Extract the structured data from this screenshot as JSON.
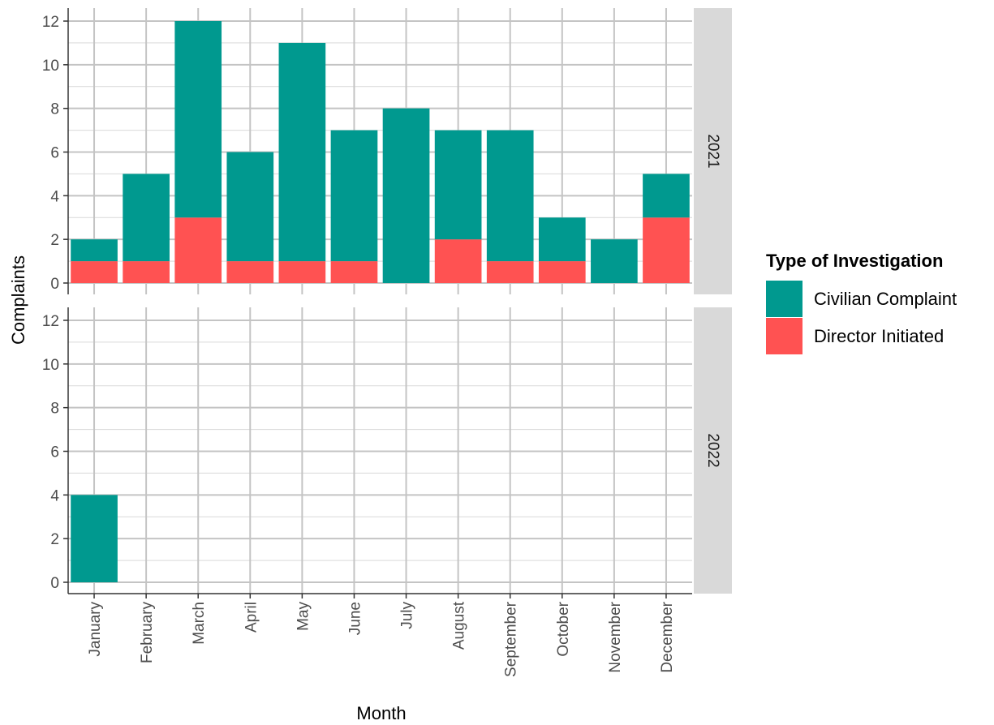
{
  "chart_data": {
    "type": "bar",
    "stacked": true,
    "facet_by": "year",
    "facets": [
      "2021",
      "2022"
    ],
    "categories": [
      "January",
      "February",
      "March",
      "April",
      "May",
      "June",
      "July",
      "August",
      "September",
      "October",
      "November",
      "December"
    ],
    "series": [
      {
        "name": "Civilian Complaint",
        "color": "#00998f",
        "values": {
          "2021": [
            1,
            4,
            9,
            5,
            10,
            6,
            8,
            5,
            6,
            2,
            2,
            2
          ],
          "2022": [
            4,
            0,
            0,
            0,
            0,
            0,
            0,
            0,
            0,
            0,
            0,
            0
          ]
        }
      },
      {
        "name": "Director Initiated",
        "color": "#ff5252",
        "values": {
          "2021": [
            1,
            1,
            3,
            1,
            1,
            1,
            0,
            2,
            1,
            1,
            0,
            3
          ],
          "2022": [
            0,
            0,
            0,
            0,
            0,
            0,
            0,
            0,
            0,
            0,
            0,
            0
          ]
        }
      }
    ],
    "xlabel": "Month",
    "ylabel": "Complaints",
    "ylim": [
      0,
      12
    ],
    "yticks": [
      0,
      2,
      4,
      6,
      8,
      10,
      12
    ],
    "grid": true,
    "legend": {
      "title": "Type of Investigation",
      "position": "right"
    }
  }
}
